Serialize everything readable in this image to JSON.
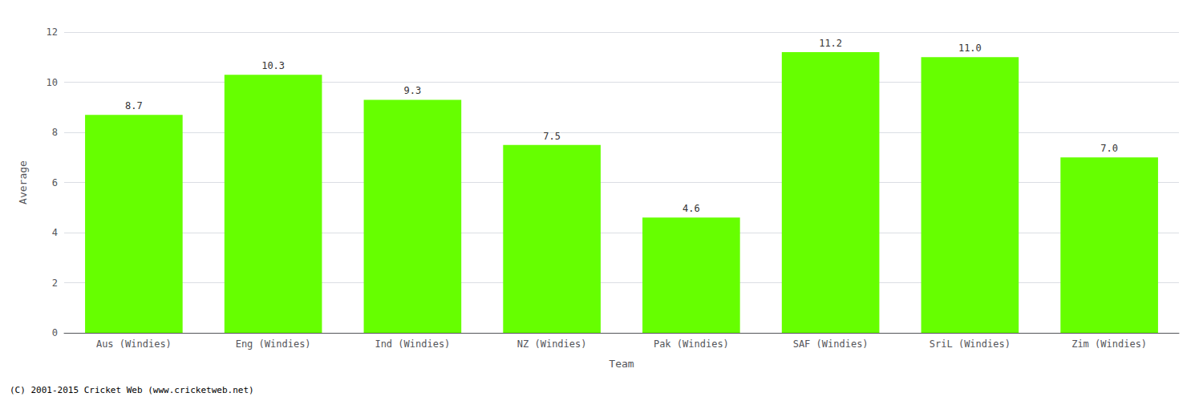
{
  "chart_data": {
    "type": "bar",
    "xlabel": "Team",
    "ylabel": "Average",
    "categories": [
      "Aus (Windies)",
      "Eng (Windies)",
      "Ind (Windies)",
      "NZ (Windies)",
      "Pak (Windies)",
      "SAF (Windies)",
      "SriL (Windies)",
      "Zim (Windies)"
    ],
    "values": [
      8.7,
      10.3,
      9.3,
      7.5,
      4.6,
      11.2,
      11.0,
      7.0
    ],
    "value_labels": [
      "8.7",
      "10.3",
      "9.3",
      "7.5",
      "4.6",
      "11.2",
      "11.0",
      "7.0"
    ],
    "color": "#66ff00",
    "ylim": [
      0,
      12
    ],
    "yticks": [
      0,
      2,
      4,
      6,
      8,
      10,
      12
    ],
    "grid": true,
    "data_labels": true,
    "annotations": [
      "(C) 2001-2015 Cricket Web (www.cricketweb.net)"
    ]
  }
}
